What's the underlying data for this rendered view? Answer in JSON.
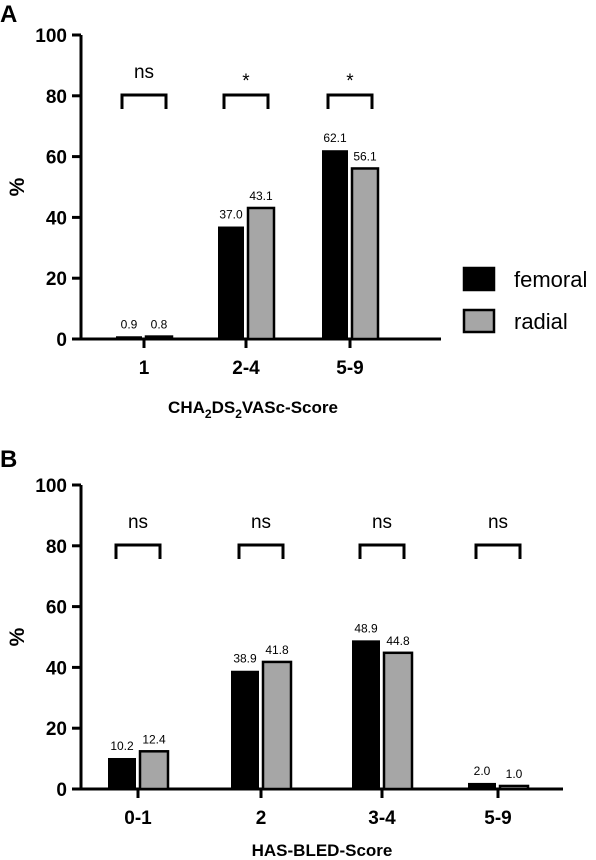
{
  "colors": {
    "femoral": "#000000",
    "radial": "#a6a6a6",
    "axis": "#000000"
  },
  "legend": {
    "placement": "right",
    "entries": [
      "femoral",
      "radial"
    ]
  },
  "chart_data": [
    {
      "panel": "A",
      "type": "bar",
      "categories": [
        "1",
        "2-4",
        "5-9"
      ],
      "series": [
        {
          "name": "femoral",
          "values": [
            0.9,
            37.0,
            62.1
          ],
          "labels": [
            "0.9",
            "37.0",
            "62.1"
          ]
        },
        {
          "name": "radial",
          "values": [
            0.8,
            43.1,
            56.1
          ],
          "labels": [
            "0.8",
            "43.1",
            "56.1"
          ]
        }
      ],
      "significance": [
        "ns",
        "*",
        "*"
      ],
      "xlabel_parts": [
        "CHA",
        "2",
        "DS",
        "2",
        "VASc-Score"
      ],
      "ylabel": "%",
      "ylim": [
        0,
        100
      ],
      "yticks": [
        "0",
        "20",
        "40",
        "60",
        "80",
        "100"
      ],
      "grid": false
    },
    {
      "panel": "B",
      "type": "bar",
      "categories": [
        "0-1",
        "2",
        "3-4",
        "5-9"
      ],
      "series": [
        {
          "name": "femoral",
          "values": [
            10.2,
            38.9,
            48.9,
            2.0
          ],
          "labels": [
            "10.2",
            "38.9",
            "48.9",
            "2.0"
          ]
        },
        {
          "name": "radial",
          "values": [
            12.4,
            41.8,
            44.8,
            1.0
          ],
          "labels": [
            "12.4",
            "41.8",
            "44.8",
            "1.0"
          ]
        }
      ],
      "significance": [
        "ns",
        "ns",
        "ns",
        "ns"
      ],
      "xlabel": "HAS-BLED-Score",
      "ylabel": "%",
      "ylim": [
        0,
        100
      ],
      "yticks": [
        "0",
        "20",
        "40",
        "60",
        "80",
        "100"
      ],
      "grid": false
    }
  ]
}
